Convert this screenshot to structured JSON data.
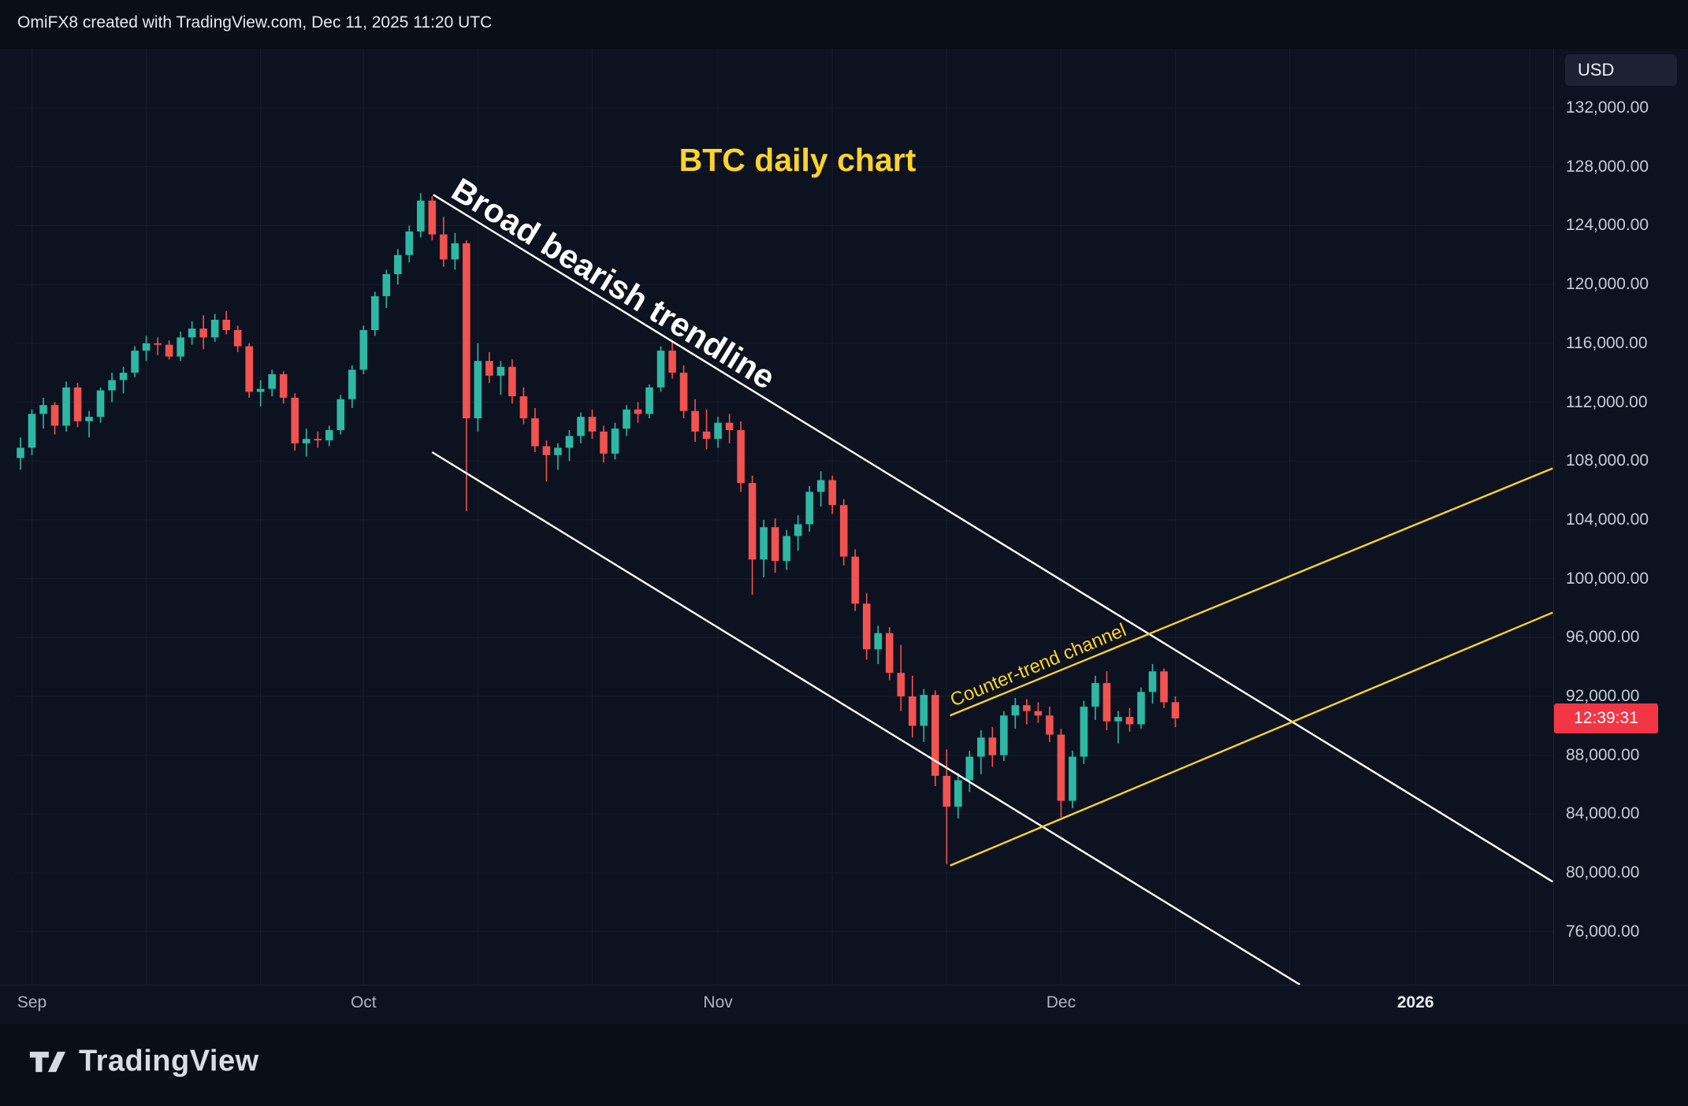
{
  "header": {
    "credit": "OmiFX8 created with TradingView.com, Dec 11, 2025 11:20 UTC"
  },
  "price_axis": {
    "currency_label": "USD",
    "labels": [
      {
        "text": "132,000.00",
        "value": 132000
      },
      {
        "text": "128,000.00",
        "value": 128000
      },
      {
        "text": "124,000.00",
        "value": 124000
      },
      {
        "text": "120,000.00",
        "value": 120000
      },
      {
        "text": "116,000.00",
        "value": 116000
      },
      {
        "text": "112,000.00",
        "value": 112000
      },
      {
        "text": "108,000.00",
        "value": 108000
      },
      {
        "text": "104,000.00",
        "value": 104000
      },
      {
        "text": "100,000.00",
        "value": 100000
      },
      {
        "text": "96,000.00",
        "value": 96000
      },
      {
        "text": "92,000.00",
        "value": 92000
      },
      {
        "text": "88,000.00",
        "value": 88000
      },
      {
        "text": "84,000.00",
        "value": 84000
      },
      {
        "text": "80,000.00",
        "value": 80000
      },
      {
        "text": "76,000.00",
        "value": 76000
      }
    ],
    "countdown": {
      "text": "12:39:31",
      "at_price": 90500,
      "bg_color": "#f23645"
    }
  },
  "time_axis": {
    "labels": [
      {
        "text": "Sep",
        "day": 1,
        "emphasis": false
      },
      {
        "text": "Oct",
        "day": 30,
        "emphasis": false
      },
      {
        "text": "Nov",
        "day": 61,
        "emphasis": false
      },
      {
        "text": "Dec",
        "day": 91,
        "emphasis": false
      },
      {
        "text": "2026",
        "day": 122,
        "emphasis": true
      }
    ]
  },
  "footer": {
    "brand": "TradingView"
  },
  "chart_data": {
    "type": "candlestick",
    "symbol": "BTC/USD",
    "timeframe": "daily",
    "title": "BTC daily chart",
    "date_range": [
      "2025-09-01",
      "2025-12-11"
    ],
    "ylim": [
      72400,
      136000
    ],
    "price_step": 4000,
    "grid": true,
    "colors": {
      "background": "#0d1220",
      "frame": "#0a0e16",
      "grid": "#171d2c",
      "up": "#2eb8a3",
      "down": "#f05350",
      "trendline_white": "#ffffff",
      "channel_yellow": "#fcd32d",
      "title_yellow": "#fcd32d",
      "countdown_red": "#f23645"
    },
    "price_gridlines": [
      76000,
      80000,
      84000,
      88000,
      92000,
      96000,
      100000,
      104000,
      108000,
      112000,
      116000,
      120000,
      124000,
      128000,
      132000
    ],
    "time_gridline_days": [
      1,
      11,
      21,
      30,
      40,
      50,
      61,
      71,
      81,
      91,
      101,
      111,
      122,
      132
    ],
    "last_price": 90500,
    "candles": [
      [
        "2025-09-01",
        108200,
        109600,
        107400,
        108900
      ],
      [
        "2025-09-02",
        108900,
        111500,
        108400,
        111200
      ],
      [
        "2025-09-03",
        111200,
        112300,
        110200,
        111800
      ],
      [
        "2025-09-04",
        111800,
        112000,
        109800,
        110400
      ],
      [
        "2025-09-05",
        110400,
        113400,
        110000,
        113000
      ],
      [
        "2025-09-06",
        113000,
        113300,
        110300,
        110700
      ],
      [
        "2025-09-07",
        110700,
        111400,
        109600,
        111000
      ],
      [
        "2025-09-08",
        111000,
        113000,
        110600,
        112800
      ],
      [
        "2025-09-09",
        112800,
        114000,
        112000,
        113500
      ],
      [
        "2025-09-10",
        113500,
        114400,
        112600,
        114000
      ],
      [
        "2025-09-11",
        114000,
        115800,
        113700,
        115500
      ],
      [
        "2025-09-12",
        115500,
        116500,
        114800,
        116000
      ],
      [
        "2025-09-13",
        116000,
        116400,
        115200,
        115900
      ],
      [
        "2025-09-14",
        115900,
        116200,
        114900,
        115100
      ],
      [
        "2025-09-15",
        115100,
        116800,
        114800,
        116400
      ],
      [
        "2025-09-16",
        116400,
        117500,
        115900,
        117000
      ],
      [
        "2025-09-17",
        117000,
        117900,
        115600,
        116400
      ],
      [
        "2025-09-18",
        116400,
        118000,
        116100,
        117600
      ],
      [
        "2025-09-19",
        117600,
        118200,
        116600,
        116900
      ],
      [
        "2025-09-20",
        116900,
        117200,
        115400,
        115800
      ],
      [
        "2025-09-21",
        115800,
        116000,
        112300,
        112700
      ],
      [
        "2025-09-22",
        112700,
        113500,
        111700,
        112900
      ],
      [
        "2025-09-23",
        112900,
        114200,
        112400,
        113900
      ],
      [
        "2025-09-24",
        113900,
        114100,
        111900,
        112300
      ],
      [
        "2025-09-25",
        112300,
        112600,
        108700,
        109200
      ],
      [
        "2025-09-26",
        109200,
        110200,
        108300,
        109500
      ],
      [
        "2025-09-27",
        109500,
        110000,
        108900,
        109400
      ],
      [
        "2025-09-28",
        109400,
        110400,
        109000,
        110100
      ],
      [
        "2025-09-29",
        110100,
        112500,
        109800,
        112200
      ],
      [
        "2025-09-30",
        112200,
        114500,
        111600,
        114200
      ],
      [
        "2025-10-01",
        114200,
        117200,
        113900,
        116900
      ],
      [
        "2025-10-02",
        116900,
        119500,
        116500,
        119200
      ],
      [
        "2025-10-03",
        119200,
        121000,
        118400,
        120700
      ],
      [
        "2025-10-04",
        120700,
        122400,
        120000,
        122000
      ],
      [
        "2025-10-05",
        122000,
        124000,
        121500,
        123600
      ],
      [
        "2025-10-06",
        123600,
        126200,
        123200,
        125700
      ],
      [
        "2025-10-07",
        125700,
        126000,
        123000,
        123400
      ],
      [
        "2025-10-08",
        123400,
        124600,
        121200,
        121700
      ],
      [
        "2025-10-09",
        121700,
        123500,
        121000,
        122800
      ],
      [
        "2025-10-10",
        122800,
        123000,
        104600,
        110900
      ],
      [
        "2025-10-11",
        110900,
        116000,
        110000,
        114800
      ],
      [
        "2025-10-12",
        114800,
        115400,
        113300,
        113800
      ],
      [
        "2025-10-13",
        113800,
        114800,
        112500,
        114400
      ],
      [
        "2025-10-14",
        114400,
        114900,
        111900,
        112400
      ],
      [
        "2025-10-15",
        112400,
        113000,
        110500,
        110900
      ],
      [
        "2025-10-16",
        110900,
        111600,
        108600,
        109000
      ],
      [
        "2025-10-17",
        109000,
        109400,
        106600,
        108400
      ],
      [
        "2025-10-18",
        108400,
        109200,
        107400,
        108900
      ],
      [
        "2025-10-19",
        108900,
        110100,
        108000,
        109700
      ],
      [
        "2025-10-20",
        109700,
        111300,
        109200,
        111000
      ],
      [
        "2025-10-21",
        111000,
        111500,
        109500,
        110000
      ],
      [
        "2025-10-22",
        110000,
        110400,
        107900,
        108500
      ],
      [
        "2025-10-23",
        108500,
        110600,
        108100,
        110200
      ],
      [
        "2025-10-24",
        110200,
        111800,
        109700,
        111500
      ],
      [
        "2025-10-25",
        111500,
        112000,
        110600,
        111200
      ],
      [
        "2025-10-26",
        111200,
        113200,
        110900,
        113000
      ],
      [
        "2025-10-27",
        113000,
        115800,
        112700,
        115500
      ],
      [
        "2025-10-28",
        115500,
        116200,
        113600,
        114000
      ],
      [
        "2025-10-29",
        114000,
        114500,
        110900,
        111400
      ],
      [
        "2025-10-30",
        111400,
        112200,
        109300,
        110000
      ],
      [
        "2025-10-31",
        110000,
        111500,
        108800,
        109500
      ],
      [
        "2025-11-01",
        109500,
        111000,
        108900,
        110600
      ],
      [
        "2025-11-02",
        110600,
        111200,
        109200,
        110100
      ],
      [
        "2025-11-03",
        110100,
        110700,
        105900,
        106500
      ],
      [
        "2025-11-04",
        106500,
        107000,
        98900,
        101300
      ],
      [
        "2025-11-05",
        101300,
        104000,
        100100,
        103500
      ],
      [
        "2025-11-06",
        103500,
        104100,
        100400,
        101200
      ],
      [
        "2025-11-07",
        101200,
        103300,
        100600,
        102900
      ],
      [
        "2025-11-08",
        102900,
        104300,
        101900,
        103700
      ],
      [
        "2025-11-09",
        103700,
        106300,
        103200,
        105900
      ],
      [
        "2025-11-10",
        105900,
        107300,
        104900,
        106700
      ],
      [
        "2025-11-11",
        106700,
        107000,
        104400,
        105000
      ],
      [
        "2025-11-12",
        105000,
        105400,
        100900,
        101500
      ],
      [
        "2025-11-13",
        101500,
        102000,
        97800,
        98300
      ],
      [
        "2025-11-14",
        98300,
        99000,
        94500,
        95200
      ],
      [
        "2025-11-15",
        95200,
        96800,
        94200,
        96300
      ],
      [
        "2025-11-16",
        96300,
        96700,
        93100,
        93600
      ],
      [
        "2025-11-17",
        93600,
        95500,
        91000,
        92000
      ],
      [
        "2025-11-18",
        92000,
        93400,
        89200,
        90000
      ],
      [
        "2025-11-19",
        90000,
        92500,
        88900,
        92100
      ],
      [
        "2025-11-20",
        92100,
        92400,
        85900,
        86600
      ],
      [
        "2025-11-21",
        86600,
        88400,
        80600,
        84500
      ],
      [
        "2025-11-22",
        84500,
        86800,
        83700,
        86300
      ],
      [
        "2025-11-23",
        86300,
        88300,
        85500,
        87900
      ],
      [
        "2025-11-24",
        87900,
        89700,
        86700,
        89200
      ],
      [
        "2025-11-25",
        89200,
        89900,
        87200,
        88000
      ],
      [
        "2025-11-26",
        88000,
        91000,
        87600,
        90700
      ],
      [
        "2025-11-27",
        90700,
        91900,
        89800,
        91400
      ],
      [
        "2025-11-28",
        91400,
        91800,
        90100,
        91000
      ],
      [
        "2025-11-29",
        91000,
        91600,
        90200,
        90700
      ],
      [
        "2025-11-30",
        90700,
        91300,
        88900,
        89400
      ],
      [
        "2025-12-01",
        89400,
        89800,
        83800,
        84900
      ],
      [
        "2025-12-02",
        84900,
        88300,
        84400,
        87900
      ],
      [
        "2025-12-03",
        87900,
        91700,
        87400,
        91300
      ],
      [
        "2025-12-04",
        91300,
        93400,
        90400,
        92900
      ],
      [
        "2025-12-05",
        92900,
        93700,
        89700,
        90300
      ],
      [
        "2025-12-06",
        90300,
        91000,
        88800,
        90600
      ],
      [
        "2025-12-07",
        90600,
        91200,
        89600,
        90100
      ],
      [
        "2025-12-08",
        90100,
        92600,
        89800,
        92300
      ],
      [
        "2025-12-09",
        92300,
        94200,
        91500,
        93700
      ],
      [
        "2025-12-10",
        93700,
        93900,
        91200,
        91600
      ],
      [
        "2025-12-11",
        91600,
        92000,
        89900,
        90500
      ]
    ],
    "annotations": {
      "lines": [
        {
          "id": "bearish-trendline-upper",
          "from": {
            "day": 36.1,
            "price": 126100
          },
          "to": {
            "day": 134,
            "price": 79400
          },
          "color": "#ffffff",
          "width": 2.4
        },
        {
          "id": "bearish-trendline-lower",
          "from": {
            "day": 36.0,
            "price": 108600
          },
          "to": {
            "day": 111.9,
            "price": 72400
          },
          "color": "#ffffff",
          "width": 2.4
        },
        {
          "id": "counter-trend-channel-upper",
          "from": {
            "day": 81.3,
            "price": 90700
          },
          "to": {
            "day": 134,
            "price": 107500
          },
          "color": "#fcd32d",
          "width": 2.4
        },
        {
          "id": "counter-trend-channel-lower",
          "from": {
            "day": 81.3,
            "price": 80500
          },
          "to": {
            "day": 134,
            "price": 97700
          },
          "color": "#fcd32d",
          "width": 2.4
        }
      ],
      "texts": [
        {
          "id": "bearish-trendline-label",
          "text": "Broad bearish trendline",
          "day": 37.5,
          "price": 126000,
          "rotation": 31.5,
          "size": 42,
          "weight": "bold",
          "color": "#ffffff"
        },
        {
          "id": "counter-trend-channel-label",
          "text": "Counter-trend channel",
          "day": 81.6,
          "price": 91300,
          "rotation": -22.5,
          "size": 24,
          "weight": "normal",
          "color": "#fcd32d"
        }
      ]
    }
  }
}
